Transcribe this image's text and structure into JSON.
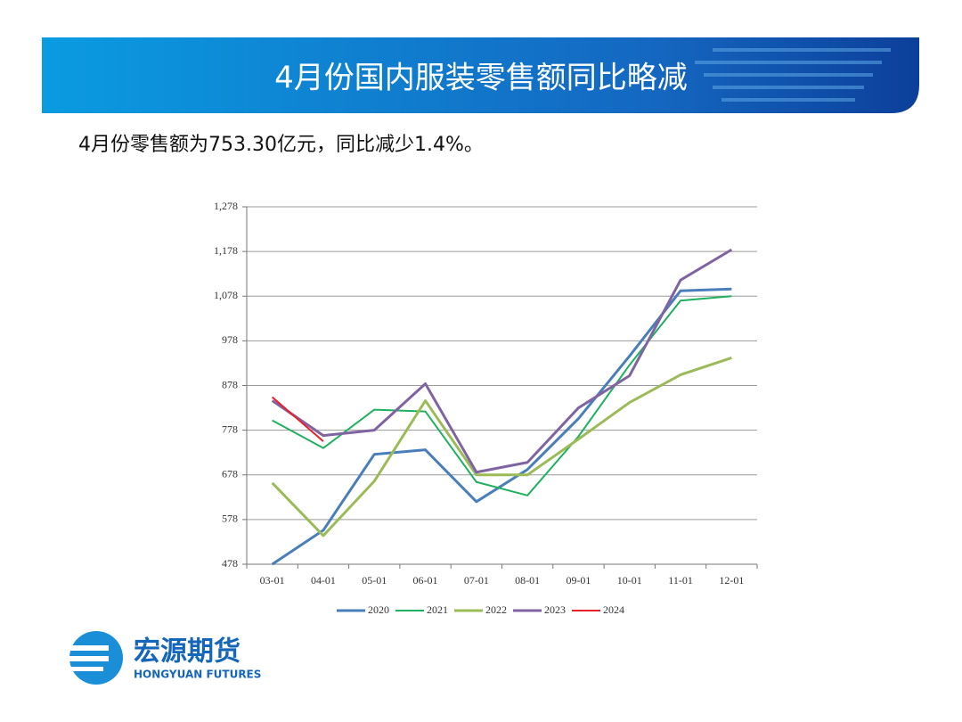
{
  "chart_data": {
    "type": "line",
    "title": "4月份国内服装零售额同比略减",
    "subtitle": "4月份零售额为753.30亿元，同比减少1.4%。",
    "categories": [
      "03-01",
      "04-01",
      "05-01",
      "06-01",
      "07-01",
      "08-01",
      "09-01",
      "10-01",
      "11-01",
      "12-01"
    ],
    "series": [
      {
        "name": "2020",
        "color": "#4a7ebb",
        "values": [
          478,
          554,
          724,
          734,
          618,
          690,
          804,
          944,
          1090,
          1094
        ]
      },
      {
        "name": "2021",
        "color": "#1fb060",
        "values": [
          800,
          738,
          824,
          820,
          662,
          632,
          764,
          924,
          1068,
          1078
        ]
      },
      {
        "name": "2022",
        "color": "#9bbb59",
        "values": [
          660,
          542,
          664,
          844,
          678,
          678,
          758,
          840,
          902,
          940
        ]
      },
      {
        "name": "2023",
        "color": "#8064a2",
        "values": [
          844,
          766,
          778,
          882,
          684,
          706,
          828,
          900,
          1114,
          1182
        ]
      },
      {
        "name": "2024",
        "color": "#e8202a",
        "values": [
          852,
          753,
          null,
          null,
          null,
          null,
          null,
          null,
          null,
          null
        ]
      }
    ],
    "ylim": [
      478,
      1278
    ],
    "yticks": [
      478,
      578,
      678,
      778,
      878,
      978,
      {
        "value": 1078,
        "label": "1,078"
      },
      {
        "value": 1178,
        "label": "1,178"
      },
      {
        "value": 1278,
        "label": "1,278"
      }
    ],
    "grid": true,
    "legend": "bottom"
  },
  "logo": {
    "name": "宏源期货",
    "english": "HONGYUAN FUTURES"
  }
}
